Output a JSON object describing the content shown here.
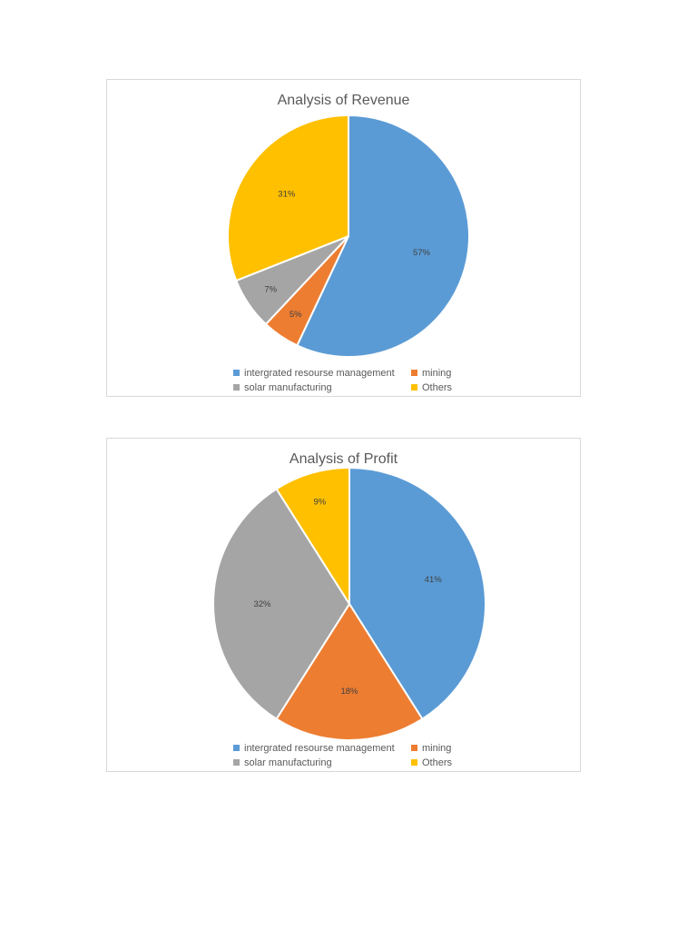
{
  "chart_data": [
    {
      "type": "pie",
      "title": "Analysis of Revenue",
      "categories": [
        "intergrated resourse management",
        "mining",
        "solar manufacturing",
        "Others"
      ],
      "values": [
        57,
        5,
        7,
        31
      ],
      "labels": [
        "57%",
        "5%",
        "7%",
        "31%"
      ],
      "colors": [
        "#5b9bd5",
        "#ed7d31",
        "#a5a5a5",
        "#ffc000"
      ],
      "legend_position": "bottom"
    },
    {
      "type": "pie",
      "title": "Analysis of Profit",
      "categories": [
        "intergrated resourse management",
        "mining",
        "solar manufacturing",
        "Others"
      ],
      "values": [
        41,
        18,
        32,
        9
      ],
      "labels": [
        "41%",
        "18%",
        "32%",
        "9%"
      ],
      "colors": [
        "#5b9bd5",
        "#ed7d31",
        "#a5a5a5",
        "#ffc000"
      ],
      "legend_position": "bottom"
    }
  ]
}
